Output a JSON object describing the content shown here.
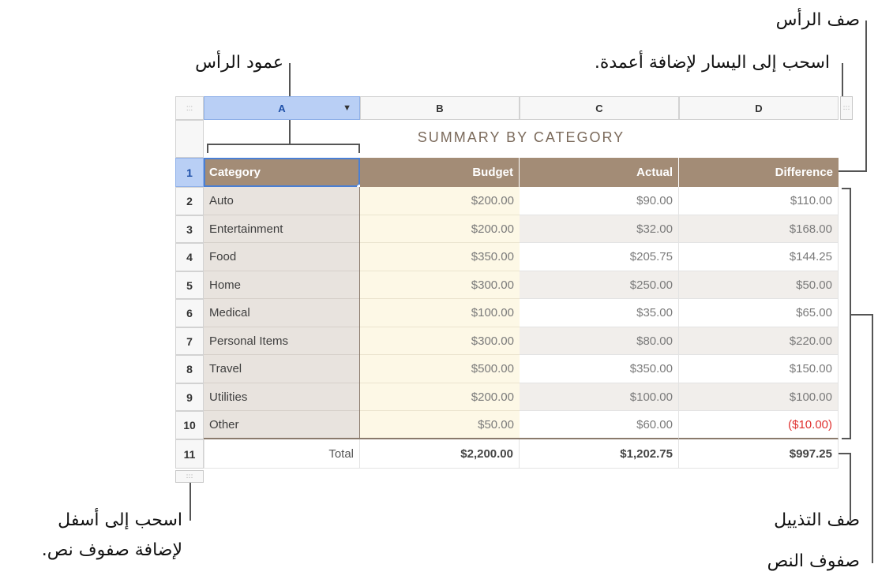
{
  "callouts": {
    "header_row": "صف الرأس",
    "drag_left_columns": "اسحب إلى اليسار لإضافة أعمدة.",
    "header_column": "عمود الرأس",
    "drag_down_line1": "اسحب إلى أسفل",
    "drag_down_line2": "لإضافة صفوف نص.",
    "footer_row": "صف التذييل",
    "body_rows": "صفوف النص"
  },
  "sheet": {
    "grip_glyph": ":::",
    "dropdown_glyph": "▼",
    "columns": [
      "A",
      "B",
      "C",
      "D"
    ],
    "title": "SUMMARY BY CATEGORY",
    "header": {
      "category": "Category",
      "budget": "Budget",
      "actual": "Actual",
      "difference": "Difference"
    },
    "row_numbers": [
      "1",
      "2",
      "3",
      "4",
      "5",
      "6",
      "7",
      "8",
      "9",
      "10",
      "11"
    ],
    "rows": [
      {
        "category": "Auto",
        "budget": "$200.00",
        "actual": "$90.00",
        "difference": "$110.00"
      },
      {
        "category": "Entertainment",
        "budget": "$200.00",
        "actual": "$32.00",
        "difference": "$168.00"
      },
      {
        "category": "Food",
        "budget": "$350.00",
        "actual": "$205.75",
        "difference": "$144.25"
      },
      {
        "category": "Home",
        "budget": "$300.00",
        "actual": "$250.00",
        "difference": "$50.00"
      },
      {
        "category": "Medical",
        "budget": "$100.00",
        "actual": "$35.00",
        "difference": "$65.00"
      },
      {
        "category": "Personal Items",
        "budget": "$300.00",
        "actual": "$80.00",
        "difference": "$220.00"
      },
      {
        "category": "Travel",
        "budget": "$500.00",
        "actual": "$350.00",
        "difference": "$150.00"
      },
      {
        "category": "Utilities",
        "budget": "$200.00",
        "actual": "$100.00",
        "difference": "$100.00"
      },
      {
        "category": "Other",
        "budget": "$50.00",
        "actual": "$60.00",
        "difference": "($10.00)"
      }
    ],
    "footer": {
      "label": "Total",
      "budget": "$2,200.00",
      "actual": "$1,202.75",
      "difference": "$997.25"
    }
  },
  "colors": {
    "header_fill": "#a38c76",
    "selection": "#b9cff5",
    "negative": "#e0312f"
  }
}
